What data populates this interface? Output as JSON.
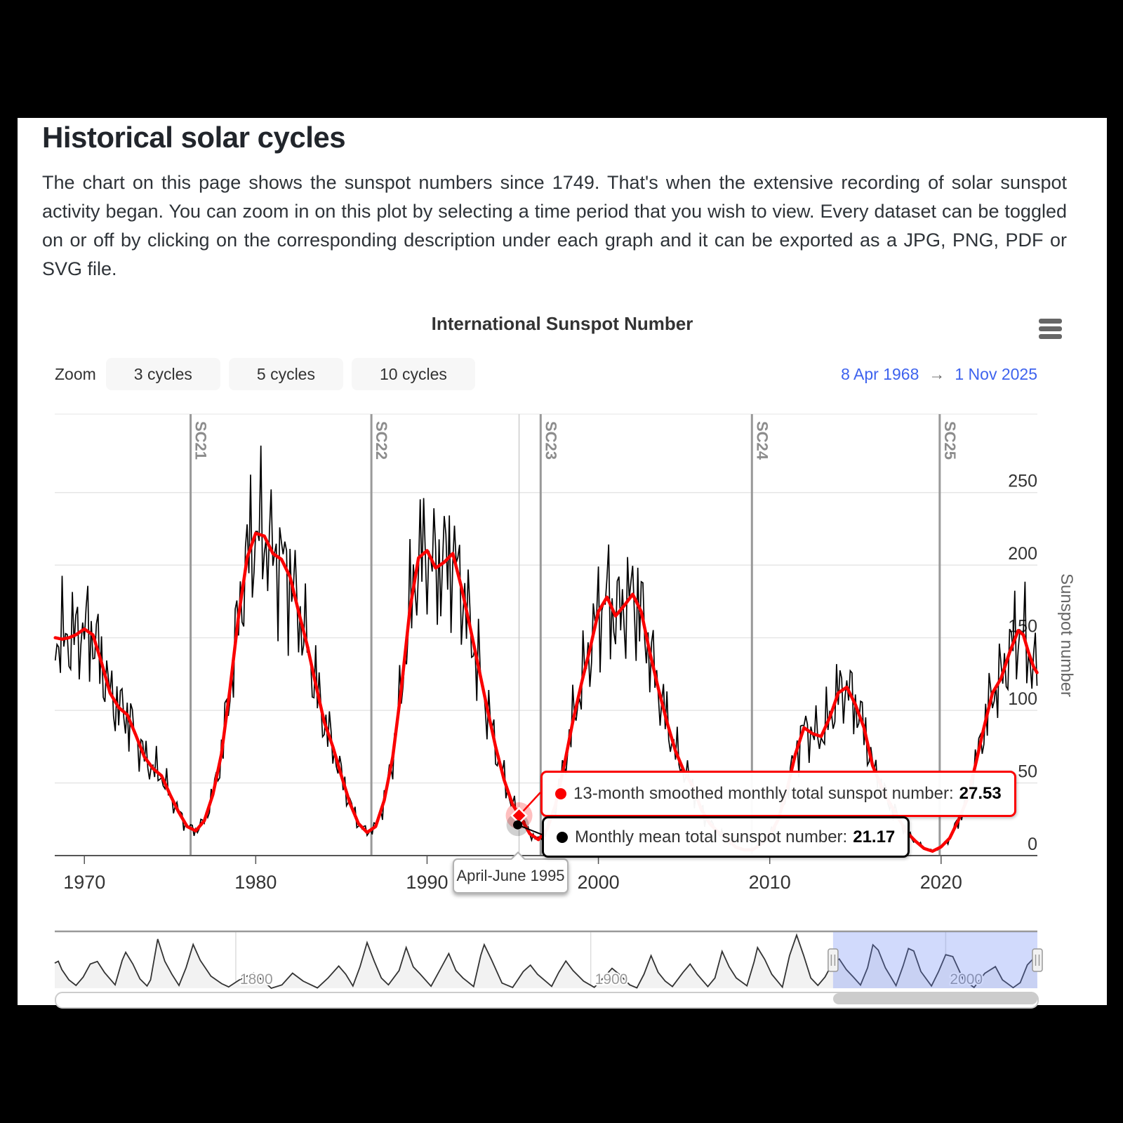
{
  "page": {
    "title": "Historical solar cycles",
    "description": "The chart on this page shows the sunspot numbers since 1749. That's when the extensive recording of solar sunspot activity began. You can zoom in on this plot by selecting a time period that you wish to view. Every dataset can be toggled on or off by clicking on the corresponding description under each graph and it can be exported as a JPG, PNG, PDF or SVG file."
  },
  "chart": {
    "title": "International Sunspot Number",
    "menu_icon": "hamburger-icon",
    "zoom_label": "Zoom",
    "zoom_buttons": [
      "3 cycles",
      "5 cycles",
      "10 cycles"
    ],
    "range": {
      "from": "8 Apr 1968",
      "arrow": "→",
      "to": "1 Nov 2025"
    }
  },
  "tooltip": {
    "smoothed_label": "13-month smoothed monthly total sunspot number:",
    "smoothed_value": "27.53",
    "monthly_label": "Monthly mean total sunspot number:",
    "monthly_value": "21.17",
    "period": "April-June 1995"
  },
  "chart_data": {
    "type": "line",
    "title": "International Sunspot Number",
    "xlabel": "",
    "ylabel": "Sunspot number",
    "x_range": [
      1968.27,
      2025.62
    ],
    "ylim": [
      0,
      304
    ],
    "y_ticks": [
      0,
      50,
      100,
      150,
      200,
      250
    ],
    "x_ticks": [
      1970,
      1980,
      1990,
      2000,
      2010,
      2020
    ],
    "grid": true,
    "legend_position": "none",
    "colors": {
      "smoothed": "#fa0000",
      "monthly": "#000000",
      "selection": "#6685f4",
      "range_text": "#3e63ee",
      "crosshair": "#cccccc",
      "cycle_line": "#999999"
    },
    "cycle_markers": [
      {
        "label": "SC21",
        "year": 1976.2
      },
      {
        "label": "SC22",
        "year": 1986.75
      },
      {
        "label": "SC23",
        "year": 1996.63
      },
      {
        "label": "SC24",
        "year": 2008.96
      },
      {
        "label": "SC25",
        "year": 2019.92
      }
    ],
    "hover": {
      "period": "April-June 1995",
      "year": 1995.37,
      "smoothed_value": 27.53,
      "monthly_value": 21.17
    },
    "series": [
      {
        "name": "13-month smoothed monthly total sunspot number",
        "color": "#fa0000",
        "points": [
          [
            1968.3,
            150
          ],
          [
            1968.7,
            149
          ],
          [
            1969.1,
            150
          ],
          [
            1969.5,
            152
          ],
          [
            1970,
            156
          ],
          [
            1970.5,
            152
          ],
          [
            1971,
            133
          ],
          [
            1971.5,
            112
          ],
          [
            1972,
            102
          ],
          [
            1972.5,
            97
          ],
          [
            1973,
            83
          ],
          [
            1973.5,
            68
          ],
          [
            1974,
            60
          ],
          [
            1974.5,
            55
          ],
          [
            1975,
            42
          ],
          [
            1975.5,
            30
          ],
          [
            1976,
            20
          ],
          [
            1976.5,
            17
          ],
          [
            1977,
            24
          ],
          [
            1977.5,
            42
          ],
          [
            1978,
            70
          ],
          [
            1978.5,
            115
          ],
          [
            1979,
            165
          ],
          [
            1979.5,
            205
          ],
          [
            1980,
            222
          ],
          [
            1980.5,
            220
          ],
          [
            1981,
            208
          ],
          [
            1981.5,
            204
          ],
          [
            1982,
            192
          ],
          [
            1982.5,
            168
          ],
          [
            1983,
            145
          ],
          [
            1983.5,
            118
          ],
          [
            1984,
            92
          ],
          [
            1984.5,
            75
          ],
          [
            1985,
            55
          ],
          [
            1985.5,
            36
          ],
          [
            1986,
            22
          ],
          [
            1986.5,
            16
          ],
          [
            1987,
            20
          ],
          [
            1987.5,
            38
          ],
          [
            1988,
            68
          ],
          [
            1988.5,
            115
          ],
          [
            1989,
            170
          ],
          [
            1989.5,
            205
          ],
          [
            1990,
            210
          ],
          [
            1990.5,
            198
          ],
          [
            1991,
            202
          ],
          [
            1991.5,
            208
          ],
          [
            1992,
            185
          ],
          [
            1992.5,
            158
          ],
          [
            1993,
            130
          ],
          [
            1993.5,
            102
          ],
          [
            1994,
            75
          ],
          [
            1994.5,
            52
          ],
          [
            1995,
            35
          ],
          [
            1995.4,
            27.5
          ],
          [
            1996,
            15
          ],
          [
            1996.5,
            11
          ],
          [
            1997,
            18
          ],
          [
            1997.5,
            35
          ],
          [
            1998,
            62
          ],
          [
            1998.5,
            92
          ],
          [
            1999,
            118
          ],
          [
            1999.5,
            142
          ],
          [
            2000,
            168
          ],
          [
            2000.5,
            178
          ],
          [
            2001,
            165
          ],
          [
            2001.5,
            172
          ],
          [
            2002,
            180
          ],
          [
            2002.5,
            168
          ],
          [
            2003,
            140
          ],
          [
            2003.5,
            115
          ],
          [
            2004,
            92
          ],
          [
            2004.5,
            72
          ],
          [
            2005,
            58
          ],
          [
            2005.5,
            48
          ],
          [
            2006,
            32
          ],
          [
            2006.5,
            22
          ],
          [
            2007,
            16
          ],
          [
            2007.5,
            12
          ],
          [
            2008,
            6
          ],
          [
            2008.5,
            4
          ],
          [
            2009,
            4
          ],
          [
            2009.5,
            8
          ],
          [
            2010,
            14
          ],
          [
            2010.5,
            25
          ],
          [
            2011,
            45
          ],
          [
            2011.5,
            70
          ],
          [
            2012,
            88
          ],
          [
            2012.5,
            84
          ],
          [
            2013,
            82
          ],
          [
            2013.5,
            95
          ],
          [
            2014,
            112
          ],
          [
            2014.5,
            116
          ],
          [
            2015,
            104
          ],
          [
            2015.5,
            88
          ],
          [
            2016,
            62
          ],
          [
            2016.5,
            48
          ],
          [
            2017,
            36
          ],
          [
            2017.5,
            26
          ],
          [
            2018,
            16
          ],
          [
            2018.5,
            10
          ],
          [
            2019,
            5
          ],
          [
            2019.5,
            3
          ],
          [
            2020,
            6
          ],
          [
            2020.5,
            12
          ],
          [
            2021,
            24
          ],
          [
            2021.5,
            38
          ],
          [
            2022,
            62
          ],
          [
            2022.5,
            88
          ],
          [
            2023,
            112
          ],
          [
            2023.5,
            122
          ],
          [
            2024,
            140
          ],
          [
            2024.5,
            155
          ],
          [
            2024.8,
            152
          ],
          [
            2025.1,
            140
          ],
          [
            2025.4,
            130
          ],
          [
            2025.6,
            126
          ]
        ]
      },
      {
        "name": "Monthly mean total sunspot number",
        "color": "#000000",
        "derived": "smoothed_plus_noise",
        "noise": {
          "amps": [
            0.14,
            0.1,
            0.07
          ],
          "freqs": [
            21.7,
            9.3,
            33.1
          ],
          "phases": [
            0,
            1.3,
            0.5
          ],
          "step_years": 0.1,
          "min_value": 0.5
        }
      }
    ],
    "navigator": {
      "x_range": [
        1749,
        2025.83
      ],
      "ticks": [
        1800,
        1900,
        2000
      ],
      "selected_range": [
        1968.27,
        2025.83
      ],
      "points": [
        [
          1749,
          135
        ],
        [
          1750,
          145
        ],
        [
          1751,
          100
        ],
        [
          1753,
          45
        ],
        [
          1755,
          15
        ],
        [
          1757,
          60
        ],
        [
          1759,
          130
        ],
        [
          1761,
          144
        ],
        [
          1763,
          85
        ],
        [
          1766,
          18
        ],
        [
          1768,
          150
        ],
        [
          1769,
          193
        ],
        [
          1771,
          130
        ],
        [
          1773,
          50
        ],
        [
          1775,
          12
        ],
        [
          1776,
          45
        ],
        [
          1778,
          264
        ],
        [
          1780,
          145
        ],
        [
          1782,
          75
        ],
        [
          1784,
          15
        ],
        [
          1786,
          110
        ],
        [
          1788,
          235
        ],
        [
          1790,
          150
        ],
        [
          1793,
          65
        ],
        [
          1796,
          25
        ],
        [
          1798,
          7
        ],
        [
          1801,
          45
        ],
        [
          1805,
          82
        ],
        [
          1808,
          35
        ],
        [
          1810,
          0
        ],
        [
          1813,
          18
        ],
        [
          1816,
          81
        ],
        [
          1819,
          38
        ],
        [
          1823,
          2
        ],
        [
          1826,
          55
        ],
        [
          1829,
          119
        ],
        [
          1831,
          75
        ],
        [
          1833,
          12
        ],
        [
          1835,
          115
        ],
        [
          1837,
          245
        ],
        [
          1839,
          145
        ],
        [
          1841,
          55
        ],
        [
          1843,
          18
        ],
        [
          1846,
          95
        ],
        [
          1848,
          219
        ],
        [
          1850,
          115
        ],
        [
          1852,
          75
        ],
        [
          1855,
          11
        ],
        [
          1858,
          115
        ],
        [
          1860,
          186
        ],
        [
          1862,
          95
        ],
        [
          1864,
          55
        ],
        [
          1867,
          9
        ],
        [
          1869,
          175
        ],
        [
          1870,
          234
        ],
        [
          1872,
          155
        ],
        [
          1875,
          28
        ],
        [
          1878,
          4
        ],
        [
          1881,
          90
        ],
        [
          1883,
          124
        ],
        [
          1885,
          75
        ],
        [
          1889,
          10
        ],
        [
          1891,
          85
        ],
        [
          1893,
          146
        ],
        [
          1895,
          95
        ],
        [
          1898,
          38
        ],
        [
          1901,
          5
        ],
        [
          1904,
          65
        ],
        [
          1906,
          107
        ],
        [
          1908,
          75
        ],
        [
          1911,
          18
        ],
        [
          1913,
          2
        ],
        [
          1915,
          75
        ],
        [
          1917,
          175
        ],
        [
          1919,
          85
        ],
        [
          1921,
          38
        ],
        [
          1923,
          9
        ],
        [
          1926,
          85
        ],
        [
          1928,
          130
        ],
        [
          1930,
          75
        ],
        [
          1933,
          9
        ],
        [
          1935,
          55
        ],
        [
          1937,
          198
        ],
        [
          1939,
          115
        ],
        [
          1941,
          55
        ],
        [
          1944,
          13
        ],
        [
          1946,
          140
        ],
        [
          1947,
          218
        ],
        [
          1949,
          155
        ],
        [
          1951,
          75
        ],
        [
          1954,
          6
        ],
        [
          1956,
          175
        ],
        [
          1958,
          285
        ],
        [
          1960,
          175
        ],
        [
          1962,
          55
        ],
        [
          1964,
          15
        ],
        [
          1966,
          60
        ],
        [
          1968,
          130
        ],
        [
          1970,
          157
        ],
        [
          1972,
          100
        ],
        [
          1974,
          60
        ],
        [
          1976,
          17
        ],
        [
          1978,
          110
        ],
        [
          1979.5,
          233
        ],
        [
          1981,
          205
        ],
        [
          1983,
          110
        ],
        [
          1986,
          14
        ],
        [
          1988,
          120
        ],
        [
          1989.5,
          213
        ],
        [
          1991,
          200
        ],
        [
          1993,
          90
        ],
        [
          1996,
          12
        ],
        [
          1998,
          90
        ],
        [
          2000,
          180
        ],
        [
          2002,
          170
        ],
        [
          2005,
          45
        ],
        [
          2008,
          4
        ],
        [
          2011,
          80
        ],
        [
          2014,
          116
        ],
        [
          2016,
          45
        ],
        [
          2019,
          3
        ],
        [
          2021,
          30
        ],
        [
          2023,
          125
        ],
        [
          2024.5,
          155
        ],
        [
          2025.6,
          125
        ]
      ]
    }
  }
}
